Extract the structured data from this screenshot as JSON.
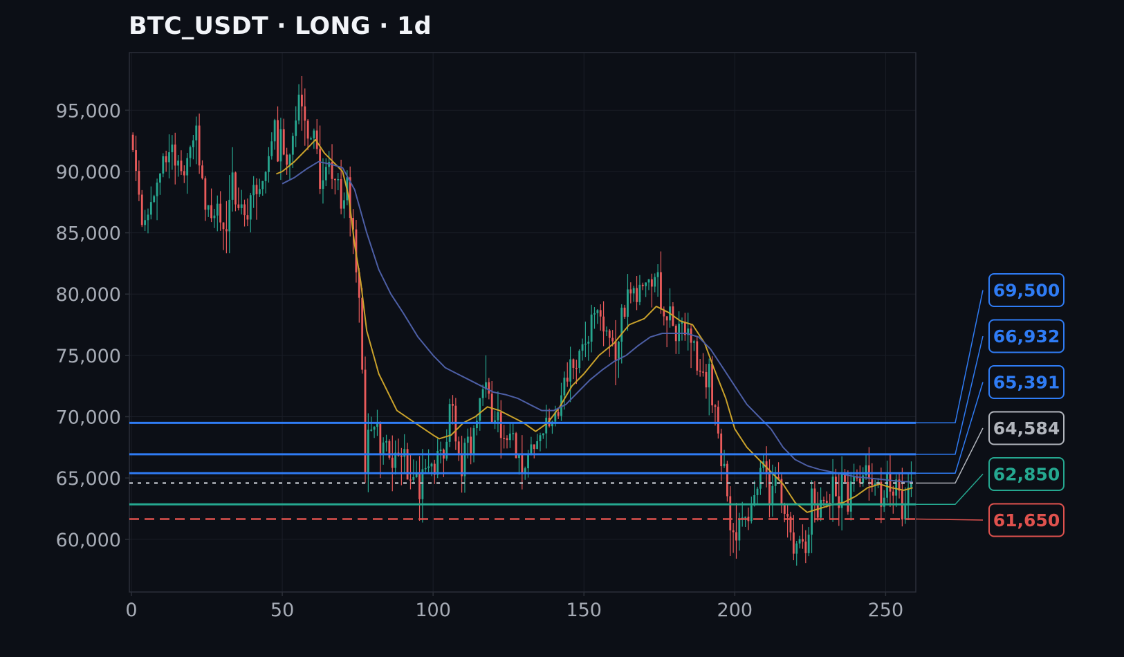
{
  "chart_data": {
    "type": "candlestick",
    "title": "BTC_USDT · LONG · 1d",
    "xlabel": "",
    "ylabel": "",
    "xlim": [
      0,
      260
    ],
    "ylim": [
      55700,
      99700
    ],
    "x_ticks": [
      0,
      50,
      100,
      150,
      200,
      250
    ],
    "y_ticks": [
      60000,
      65000,
      70000,
      75000,
      80000,
      85000,
      90000,
      95000
    ],
    "grid": true,
    "price_anchors": [
      [
        0,
        93000
      ],
      [
        4,
        86000
      ],
      [
        8,
        88000
      ],
      [
        10,
        90500
      ],
      [
        14,
        92000
      ],
      [
        18,
        89500
      ],
      [
        22,
        93000
      ],
      [
        26,
        87000
      ],
      [
        30,
        86000
      ],
      [
        34,
        88000
      ],
      [
        38,
        87000
      ],
      [
        44,
        88500
      ],
      [
        48,
        93000
      ],
      [
        52,
        90000
      ],
      [
        56,
        95000
      ],
      [
        60,
        93000
      ],
      [
        64,
        89500
      ],
      [
        68,
        88500
      ],
      [
        72,
        88500
      ],
      [
        74,
        84000
      ],
      [
        76,
        79000
      ],
      [
        78,
        67000
      ],
      [
        79,
        70000
      ],
      [
        84,
        68000
      ],
      [
        90,
        66000
      ],
      [
        96,
        64500
      ],
      [
        100,
        66500
      ],
      [
        104,
        67000
      ],
      [
        106,
        70000
      ],
      [
        110,
        66000
      ],
      [
        114,
        69000
      ],
      [
        118,
        74000
      ],
      [
        120,
        70500
      ],
      [
        124,
        68500
      ],
      [
        128,
        68000
      ],
      [
        130,
        66500
      ],
      [
        134,
        67500
      ],
      [
        138,
        69000
      ],
      [
        142,
        70500
      ],
      [
        146,
        74000
      ],
      [
        150,
        76000
      ],
      [
        156,
        78000
      ],
      [
        160,
        75500
      ],
      [
        164,
        78500
      ],
      [
        168,
        80500
      ],
      [
        172,
        81500
      ],
      [
        176,
        80000
      ],
      [
        180,
        77000
      ],
      [
        186,
        76500
      ],
      [
        188,
        74500
      ],
      [
        192,
        73500
      ],
      [
        194,
        70000
      ],
      [
        196,
        66500
      ],
      [
        198,
        63000
      ],
      [
        200,
        61000
      ],
      [
        204,
        61500
      ],
      [
        208,
        65000
      ],
      [
        210,
        66000
      ],
      [
        212,
        63500
      ],
      [
        216,
        63500
      ],
      [
        218,
        61000
      ],
      [
        222,
        59500
      ],
      [
        224,
        59000
      ],
      [
        226,
        62500
      ],
      [
        230,
        63000
      ],
      [
        234,
        63500
      ],
      [
        238,
        64000
      ],
      [
        242,
        64500
      ],
      [
        244,
        66500
      ],
      [
        248,
        64000
      ],
      [
        252,
        64500
      ],
      [
        256,
        63000
      ],
      [
        259,
        64200
      ]
    ],
    "series": [
      {
        "name": "",
        "color": "#caa22b",
        "period": "fast",
        "values": [
          [
            48,
            89800
          ],
          [
            50,
            90000
          ],
          [
            54,
            90800
          ],
          [
            58,
            91800
          ],
          [
            61,
            92600
          ],
          [
            64,
            91500
          ],
          [
            68,
            90500
          ],
          [
            70,
            90000
          ],
          [
            72,
            88000
          ],
          [
            74,
            84000
          ],
          [
            76,
            81000
          ],
          [
            78,
            77000
          ],
          [
            82,
            73500
          ],
          [
            88,
            70500
          ],
          [
            94,
            69500
          ],
          [
            100,
            68500
          ],
          [
            102,
            68200
          ],
          [
            106,
            68500
          ],
          [
            110,
            69500
          ],
          [
            114,
            70000
          ],
          [
            118,
            70800
          ],
          [
            122,
            70500
          ],
          [
            126,
            70000
          ],
          [
            130,
            69500
          ],
          [
            134,
            68800
          ],
          [
            138,
            69500
          ],
          [
            142,
            70800
          ],
          [
            146,
            72500
          ],
          [
            150,
            73500
          ],
          [
            155,
            75000
          ],
          [
            160,
            76000
          ],
          [
            165,
            77500
          ],
          [
            170,
            78000
          ],
          [
            174,
            79000
          ],
          [
            178,
            78500
          ],
          [
            182,
            77800
          ],
          [
            186,
            77500
          ],
          [
            190,
            76000
          ],
          [
            193,
            74000
          ],
          [
            197,
            71500
          ],
          [
            200,
            69000
          ],
          [
            204,
            67500
          ],
          [
            208,
            66500
          ],
          [
            212,
            65500
          ],
          [
            216,
            64500
          ],
          [
            220,
            63000
          ],
          [
            224,
            62200
          ],
          [
            228,
            62500
          ],
          [
            232,
            62800
          ],
          [
            236,
            63000
          ],
          [
            240,
            63500
          ],
          [
            244,
            64200
          ],
          [
            248,
            64500
          ],
          [
            252,
            64200
          ],
          [
            256,
            64000
          ],
          [
            259,
            64200
          ]
        ]
      },
      {
        "name": "",
        "color": "#4d5fa6",
        "period": "slow",
        "values": [
          [
            50,
            89000
          ],
          [
            54,
            89500
          ],
          [
            58,
            90200
          ],
          [
            62,
            90800
          ],
          [
            66,
            90600
          ],
          [
            70,
            90300
          ],
          [
            74,
            88500
          ],
          [
            78,
            85000
          ],
          [
            82,
            82000
          ],
          [
            86,
            80000
          ],
          [
            90,
            78500
          ],
          [
            95,
            76500
          ],
          [
            100,
            75000
          ],
          [
            104,
            74000
          ],
          [
            108,
            73500
          ],
          [
            112,
            73000
          ],
          [
            116,
            72500
          ],
          [
            120,
            72000
          ],
          [
            124,
            71800
          ],
          [
            128,
            71500
          ],
          [
            132,
            71000
          ],
          [
            136,
            70500
          ],
          [
            140,
            70500
          ],
          [
            144,
            71000
          ],
          [
            148,
            72000
          ],
          [
            152,
            73000
          ],
          [
            156,
            73800
          ],
          [
            160,
            74500
          ],
          [
            164,
            75000
          ],
          [
            168,
            75800
          ],
          [
            172,
            76500
          ],
          [
            176,
            76800
          ],
          [
            180,
            76800
          ],
          [
            184,
            76800
          ],
          [
            188,
            76500
          ],
          [
            192,
            75500
          ],
          [
            196,
            74000
          ],
          [
            200,
            72500
          ],
          [
            204,
            71000
          ],
          [
            208,
            70000
          ],
          [
            212,
            69000
          ],
          [
            216,
            67500
          ],
          [
            220,
            66500
          ],
          [
            224,
            66000
          ],
          [
            228,
            65700
          ],
          [
            232,
            65500
          ],
          [
            236,
            65300
          ],
          [
            240,
            65100
          ],
          [
            244,
            65000
          ],
          [
            248,
            64900
          ],
          [
            252,
            64800
          ],
          [
            256,
            64700
          ],
          [
            259,
            64700
          ]
        ]
      }
    ],
    "levels": [
      {
        "value": 69500,
        "label": "69,500",
        "color": "#2f7cf5",
        "style": "solid"
      },
      {
        "value": 66932,
        "label": "66,932",
        "color": "#2f7cf5",
        "style": "solid"
      },
      {
        "value": 65391,
        "label": "65,391",
        "color": "#2f7cf5",
        "style": "solid"
      },
      {
        "value": 64584,
        "label": "64,584",
        "color": "#b2b6bd",
        "style": "dotted"
      },
      {
        "value": 62850,
        "label": "62,850",
        "color": "#25a890",
        "style": "solid"
      },
      {
        "value": 61650,
        "label": "61,650",
        "color": "#e0524e",
        "style": "dashed"
      }
    ],
    "colors": {
      "background": "#0c0f16",
      "candle_up": "#27a68f",
      "candle_down": "#ea5b5b",
      "grid": "#1a1e27",
      "frame": "#2b2f38",
      "tick_text": "#a7acb6",
      "title_text": "#f2f4f8"
    }
  }
}
